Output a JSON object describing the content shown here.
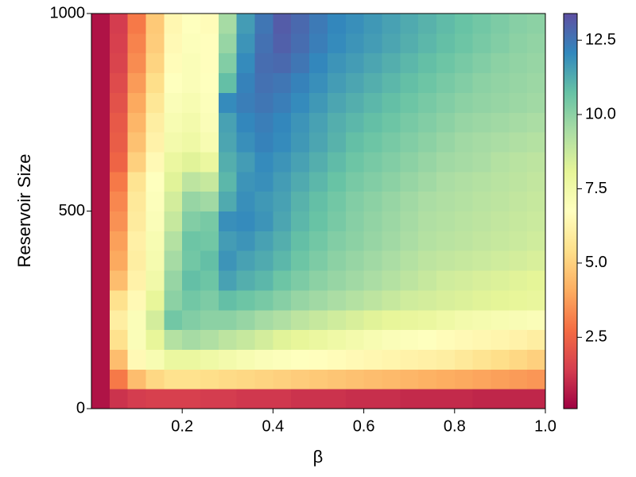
{
  "chart_data": {
    "type": "heatmap",
    "xlabel": "β",
    "ylabel": "Reservoir Size",
    "x": [
      0.02,
      0.06,
      0.1,
      0.14,
      0.18,
      0.22,
      0.26,
      0.3,
      0.34,
      0.38,
      0.42,
      0.46,
      0.5,
      0.54,
      0.58,
      0.62,
      0.66,
      0.7,
      0.74,
      0.78,
      0.82,
      0.86,
      0.9,
      0.94,
      0.98
    ],
    "y": [
      25,
      75,
      125,
      175,
      225,
      275,
      325,
      375,
      425,
      475,
      525,
      575,
      625,
      675,
      725,
      775,
      825,
      875,
      925,
      975
    ],
    "z": [
      [
        0.5,
        1.2,
        1.4,
        1.5,
        1.5,
        1.5,
        1.4,
        1.4,
        1.3,
        1.3,
        1.3,
        1.2,
        1.2,
        1.2,
        1.1,
        1.1,
        1.1,
        1.0,
        1.0,
        1.0,
        1.0,
        0.9,
        0.9,
        0.9,
        0.9
      ],
      [
        0.5,
        3,
        4.5,
        5.2,
        5.5,
        5.5,
        5.4,
        5.3,
        5.2,
        5.1,
        5.0,
        4.9,
        4.8,
        4.7,
        4.6,
        4.5,
        4.4,
        4.3,
        4.2,
        4.1,
        4.0,
        3.9,
        3.8,
        3.7,
        3.6
      ],
      [
        0.5,
        4.5,
        6.5,
        7.2,
        7.8,
        7.8,
        7.6,
        7.4,
        7.2,
        7.0,
        6.9,
        6.8,
        6.7,
        6.6,
        6.5,
        6.4,
        6.3,
        6.2,
        6.1,
        6.0,
        5.8,
        5.6,
        5.4,
        5.2,
        5.0
      ],
      [
        0.5,
        5.5,
        7,
        8,
        9.2,
        9.5,
        9.3,
        9,
        8.8,
        8.5,
        8.2,
        8,
        7.8,
        7.6,
        7.4,
        7.2,
        7.0,
        6.9,
        6.8,
        6.6,
        6.5,
        6.4,
        6.3,
        6.2,
        6.0
      ],
      [
        0.5,
        6,
        7,
        8.5,
        10.5,
        10.2,
        10,
        10,
        9.8,
        9.5,
        9.3,
        9,
        8.8,
        8.6,
        8.4,
        8.2,
        8,
        7.9,
        7.8,
        7.6,
        7.4,
        7.3,
        7.2,
        7.1,
        7.0
      ],
      [
        0.5,
        5.5,
        6.5,
        8,
        10,
        10.5,
        10.3,
        10.8,
        10.6,
        10.4,
        10.1,
        9.8,
        9.6,
        9.4,
        9.2,
        9.0,
        8.8,
        8.6,
        8.5,
        8.4,
        8.3,
        8.2,
        8.1,
        8.0,
        7.9
      ],
      [
        0.5,
        4.5,
        6.2,
        7.5,
        9.8,
        10.8,
        10.6,
        11.5,
        11.2,
        11.0,
        10.6,
        10.3,
        10.0,
        9.8,
        9.6,
        9.4,
        9.2,
        9.0,
        8.8,
        8.6,
        8.5,
        8.4,
        8.3,
        8.2,
        8.1
      ],
      [
        0.5,
        4,
        6,
        7.3,
        9.5,
        10.5,
        10.8,
        11.8,
        11.5,
        11.3,
        11.0,
        10.6,
        10.3,
        10.0,
        9.8,
        9.6,
        9.4,
        9.2,
        9.0,
        8.9,
        8.8,
        8.7,
        8.6,
        8.5,
        8.4
      ],
      [
        0.5,
        3.8,
        6.1,
        7.2,
        9.2,
        10.6,
        10.5,
        11.6,
        11.8,
        11.5,
        11.2,
        10.8,
        10.5,
        10.2,
        10.0,
        9.8,
        9.6,
        9.4,
        9.2,
        9.1,
        9.0,
        8.9,
        8.8,
        8.7,
        8.6
      ],
      [
        0.5,
        3.5,
        5.9,
        7.0,
        8.8,
        10.2,
        10.4,
        11.9,
        12.0,
        11.8,
        11.4,
        11.0,
        10.7,
        10.4,
        10.1,
        9.9,
        9.7,
        9.5,
        9.3,
        9.2,
        9.1,
        9.0,
        8.9,
        8.8,
        8.7
      ],
      [
        0.5,
        3.3,
        5.8,
        6.9,
        8.5,
        9.8,
        9.6,
        11.3,
        11.9,
        11.7,
        11.5,
        11.1,
        10.8,
        10.5,
        10.2,
        10.0,
        9.8,
        9.6,
        9.4,
        9.3,
        9.2,
        9.1,
        9.0,
        8.9,
        8.8
      ],
      [
        0.5,
        3.0,
        5.6,
        6.8,
        8.2,
        9.0,
        8.8,
        11.0,
        11.8,
        11.9,
        11.6,
        11.3,
        11.0,
        10.7,
        10.4,
        10.2,
        10.0,
        9.8,
        9.6,
        9.4,
        9.3,
        9.2,
        9.1,
        9.0,
        8.9
      ],
      [
        0.5,
        2.5,
        5.0,
        6.5,
        7.8,
        8.2,
        7.8,
        11.2,
        11.6,
        12.0,
        11.8,
        11.5,
        11.2,
        10.9,
        10.6,
        10.4,
        10.2,
        10.0,
        9.8,
        9.6,
        9.5,
        9.4,
        9.2,
        9.1,
        9.0
      ],
      [
        0.5,
        2.3,
        4.6,
        6.2,
        7.4,
        7.6,
        7.2,
        11.4,
        11.9,
        12.2,
        12.0,
        11.7,
        11.4,
        11.1,
        10.8,
        10.6,
        10.4,
        10.2,
        10.0,
        9.8,
        9.6,
        9.5,
        9.4,
        9.3,
        9.2
      ],
      [
        0.5,
        2.2,
        4.3,
        6.0,
        7.2,
        7.4,
        7.0,
        11.5,
        12.1,
        12.3,
        12.1,
        11.8,
        11.5,
        11.2,
        11.0,
        10.8,
        10.6,
        10.4,
        10.2,
        10.0,
        9.8,
        9.7,
        9.6,
        9.5,
        9.4
      ],
      [
        0.5,
        2.0,
        4.0,
        5.7,
        7.0,
        7.2,
        6.9,
        12.0,
        12.3,
        12.5,
        12.3,
        12.0,
        11.7,
        11.4,
        11.2,
        11.0,
        10.8,
        10.6,
        10.4,
        10.2,
        10.0,
        9.9,
        9.8,
        9.7,
        9.6
      ],
      [
        0.5,
        1.8,
        3.7,
        5.4,
        6.8,
        7.0,
        6.8,
        10.8,
        12.2,
        12.6,
        12.5,
        12.2,
        11.9,
        11.6,
        11.4,
        11.2,
        11.0,
        10.8,
        10.6,
        10.4,
        10.2,
        10.0,
        9.9,
        9.8,
        9.7
      ],
      [
        0.5,
        1.6,
        3.4,
        5.1,
        6.6,
        7.0,
        6.7,
        10.2,
        12.0,
        12.7,
        12.8,
        12.5,
        12.1,
        11.8,
        11.6,
        11.4,
        11.2,
        11.0,
        10.8,
        10.6,
        10.4,
        10.2,
        10.0,
        9.9,
        9.8
      ],
      [
        0.5,
        1.5,
        3.2,
        4.9,
        6.5,
        6.9,
        6.7,
        9.8,
        11.8,
        12.6,
        13.0,
        12.7,
        12.3,
        12.0,
        11.8,
        11.6,
        11.4,
        11.2,
        11.0,
        10.8,
        10.6,
        10.4,
        10.2,
        10.0,
        9.9
      ],
      [
        0.5,
        1.4,
        3.0,
        4.8,
        6.4,
        6.8,
        6.6,
        9.5,
        11.6,
        12.5,
        13.1,
        12.8,
        12.4,
        12.1,
        11.9,
        11.7,
        11.5,
        11.3,
        11.1,
        10.9,
        10.7,
        10.5,
        10.3,
        10.1,
        10.0
      ]
    ],
    "xlim": [
      0,
      1
    ],
    "ylim": [
      0,
      1000
    ],
    "xticks": [
      0.2,
      0.4,
      0.6,
      0.8,
      {
        "value": 1,
        "label": "1.0"
      }
    ],
    "yticks": [
      0,
      500,
      1000
    ],
    "clim": [
      0.1,
      13.4
    ],
    "cticks": [
      2.5,
      {
        "value": 5,
        "label": "5.0"
      },
      7.5,
      {
        "value": 10,
        "label": "10.0"
      },
      12.5
    ],
    "colorscale": [
      "#9e0142",
      "#d53e4f",
      "#f46d43",
      "#fdae61",
      "#fee08b",
      "#ffffbf",
      "#e6f598",
      "#abdda4",
      "#66c2a5",
      "#3288bd",
      "#5e4fa2"
    ]
  }
}
